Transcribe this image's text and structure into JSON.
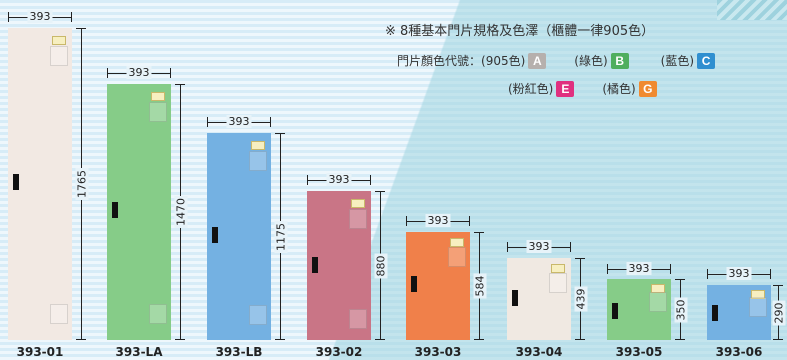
{
  "note": "※ 8種基本門片規格及色澤（櫃體一律905色）",
  "legend": {
    "label": "門片顏色代號：",
    "items": [
      {
        "name": "(905色)",
        "code": "A",
        "color": "#b6b0ad"
      },
      {
        "name": "(綠色)",
        "code": "B",
        "color": "#4fae5e"
      },
      {
        "name": "(藍色)",
        "code": "C",
        "color": "#2f8fd0"
      },
      {
        "name": "(粉紅色)",
        "code": "E",
        "color": "#e0307f"
      },
      {
        "name": "(橘色)",
        "code": "G",
        "color": "#f08a30"
      }
    ]
  },
  "doors": [
    {
      "model": "393-01",
      "width": "393",
      "height": "1765",
      "color": "#f2e9e3"
    },
    {
      "model": "393-LA",
      "width": "393",
      "height": "1470",
      "color": "#86cc88"
    },
    {
      "model": "393-LB",
      "width": "393",
      "height": "1175",
      "color": "#74b1e2"
    },
    {
      "model": "393-02",
      "width": "393",
      "height": "880",
      "color": "#c97586"
    },
    {
      "model": "393-03",
      "width": "393",
      "height": "584",
      "color": "#f0804a"
    },
    {
      "model": "393-04",
      "width": "393",
      "height": "439",
      "color": "#f0e9e2"
    },
    {
      "model": "393-05",
      "width": "393",
      "height": "350",
      "color": "#86cc88"
    },
    {
      "model": "393-06",
      "width": "393",
      "height": "290",
      "color": "#74b1e2"
    }
  ]
}
